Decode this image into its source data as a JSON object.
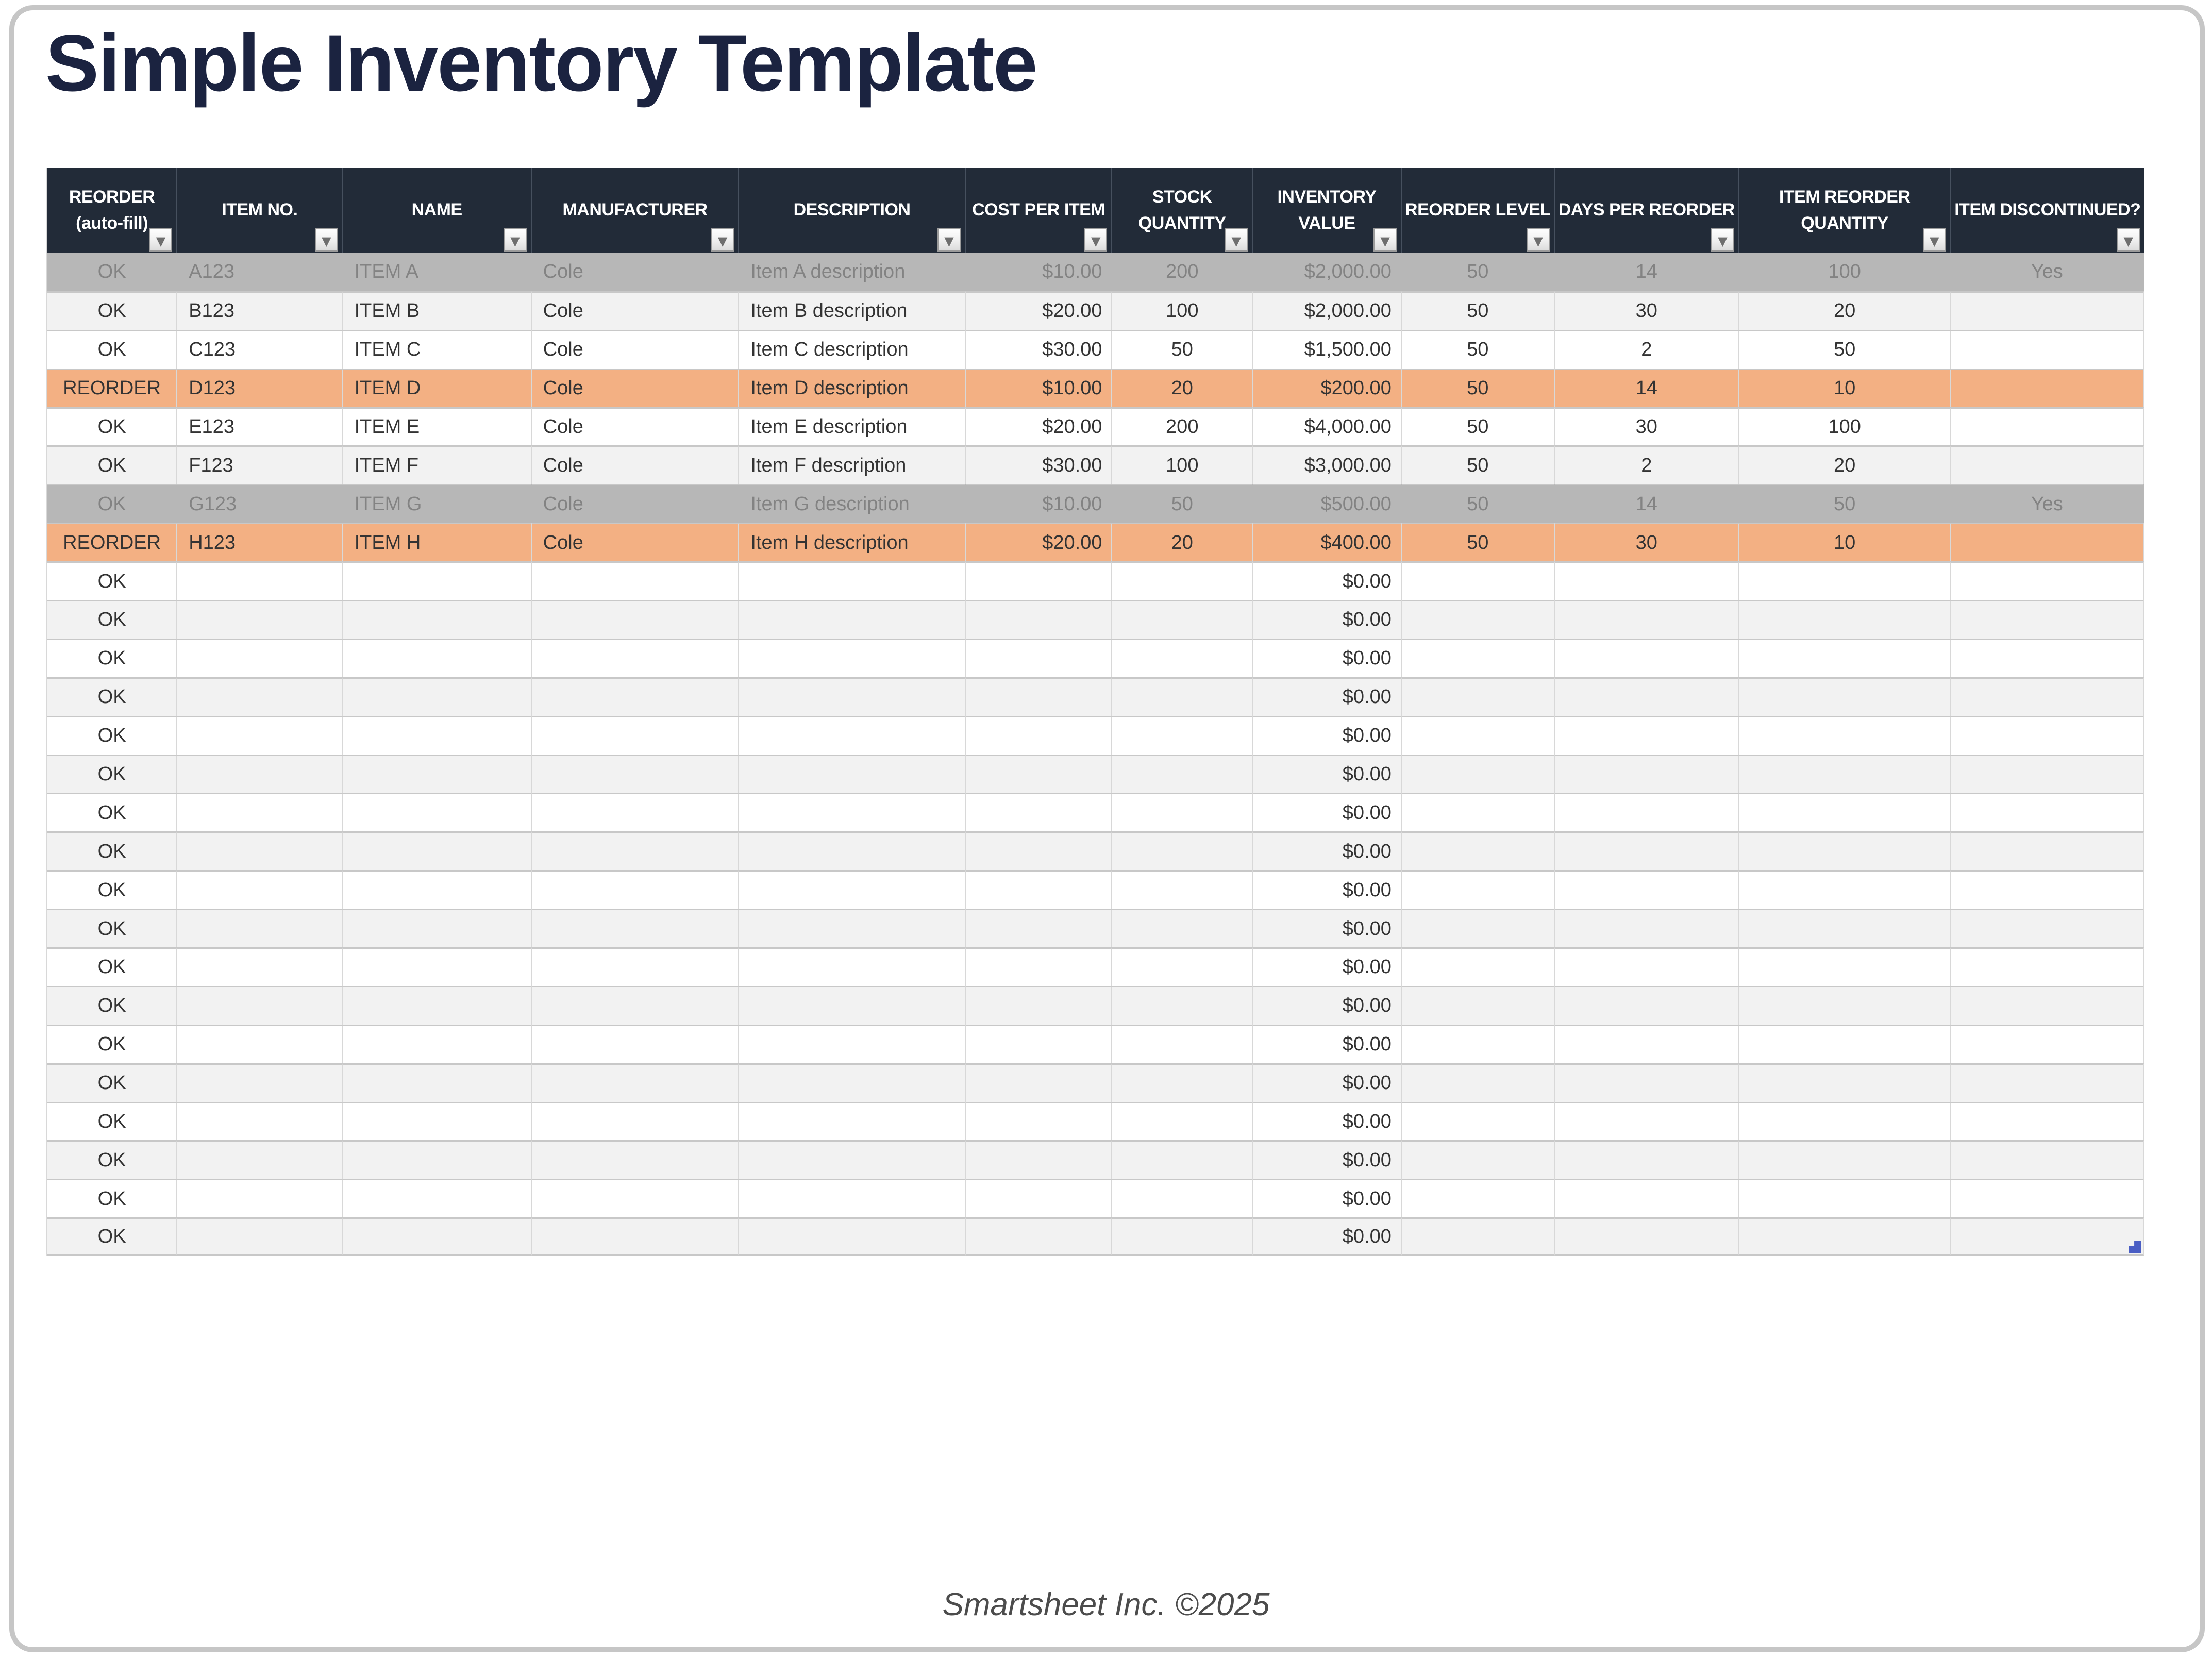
{
  "title": "Simple Inventory Template",
  "footer": "Smartsheet Inc. ©2025",
  "colors": {
    "header_bg": "#222B38",
    "title_text": "#1B2340",
    "reorder_row": "#F3B083",
    "discontinued_row": "#B7B7B7",
    "alt_row": "#F2F2F2",
    "page_border": "#C6C6C6",
    "resize_handle": "#4A5EC4"
  },
  "table": {
    "filter_icon": "▼",
    "columns": [
      {
        "id": "reorder-status",
        "label": "REORDER (auto-fill)",
        "lines": [
          "REORDER",
          "(auto-fill)"
        ],
        "align": "c"
      },
      {
        "id": "item-no",
        "label": "ITEM NO.",
        "lines": [
          "ITEM NO."
        ],
        "align": "l"
      },
      {
        "id": "name",
        "label": "NAME",
        "lines": [
          "NAME"
        ],
        "align": "l"
      },
      {
        "id": "manufacturer",
        "label": "MANUFACTURER",
        "lines": [
          "MANUFACTURER"
        ],
        "align": "l"
      },
      {
        "id": "description",
        "label": "DESCRIPTION",
        "lines": [
          "DESCRIPTION"
        ],
        "align": "l"
      },
      {
        "id": "cost-per-item",
        "label": "COST PER ITEM",
        "lines": [
          "COST PER ITEM"
        ],
        "align": "r"
      },
      {
        "id": "stock-quantity",
        "label": "STOCK QUANTITY",
        "lines": [
          "STOCK",
          "QUANTITY"
        ],
        "align": "c"
      },
      {
        "id": "inventory-value",
        "label": "INVENTORY VALUE",
        "lines": [
          "INVENTORY",
          "VALUE"
        ],
        "align": "r"
      },
      {
        "id": "reorder-level",
        "label": "REORDER LEVEL",
        "lines": [
          "REORDER LEVEL"
        ],
        "align": "c"
      },
      {
        "id": "days-per-reorder",
        "label": "DAYS PER REORDER",
        "lines": [
          "DAYS PER REORDER"
        ],
        "align": "c"
      },
      {
        "id": "item-reorder-quantity",
        "label": "ITEM REORDER QUANTITY",
        "lines": [
          "ITEM REORDER",
          "QUANTITY"
        ],
        "align": "c"
      },
      {
        "id": "item-discontinued",
        "label": "ITEM DISCONTINUED?",
        "lines": [
          "ITEM DISCONTINUED?"
        ],
        "align": "c"
      }
    ],
    "rows": [
      {
        "style": "discontinued",
        "cells": [
          "OK",
          "A123",
          "ITEM A",
          "Cole",
          "Item A description",
          "$10.00",
          "200",
          "$2,000.00",
          "50",
          "14",
          "100",
          "Yes"
        ]
      },
      {
        "style": "alt",
        "cells": [
          "OK",
          "B123",
          "ITEM B",
          "Cole",
          "Item B description",
          "$20.00",
          "100",
          "$2,000.00",
          "50",
          "30",
          "20",
          ""
        ]
      },
      {
        "style": "",
        "cells": [
          "OK",
          "C123",
          "ITEM C",
          "Cole",
          "Item C description",
          "$30.00",
          "50",
          "$1,500.00",
          "50",
          "2",
          "50",
          ""
        ]
      },
      {
        "style": "reorder",
        "cells": [
          "REORDER",
          "D123",
          "ITEM D",
          "Cole",
          "Item D description",
          "$10.00",
          "20",
          "$200.00",
          "50",
          "14",
          "10",
          ""
        ]
      },
      {
        "style": "",
        "cells": [
          "OK",
          "E123",
          "ITEM E",
          "Cole",
          "Item E description",
          "$20.00",
          "200",
          "$4,000.00",
          "50",
          "30",
          "100",
          ""
        ]
      },
      {
        "style": "alt",
        "cells": [
          "OK",
          "F123",
          "ITEM F",
          "Cole",
          "Item F description",
          "$30.00",
          "100",
          "$3,000.00",
          "50",
          "2",
          "20",
          ""
        ]
      },
      {
        "style": "discontinued",
        "cells": [
          "OK",
          "G123",
          "ITEM G",
          "Cole",
          "Item G description",
          "$10.00",
          "50",
          "$500.00",
          "50",
          "14",
          "50",
          "Yes"
        ]
      },
      {
        "style": "reorder",
        "cells": [
          "REORDER",
          "H123",
          "ITEM H",
          "Cole",
          "Item H description",
          "$20.00",
          "20",
          "$400.00",
          "50",
          "30",
          "10",
          ""
        ]
      }
    ],
    "empty_rows": {
      "count": 18,
      "cells": [
        "OK",
        "",
        "",
        "",
        "",
        "",
        "",
        "$0.00",
        "",
        "",
        "",
        ""
      ]
    }
  }
}
